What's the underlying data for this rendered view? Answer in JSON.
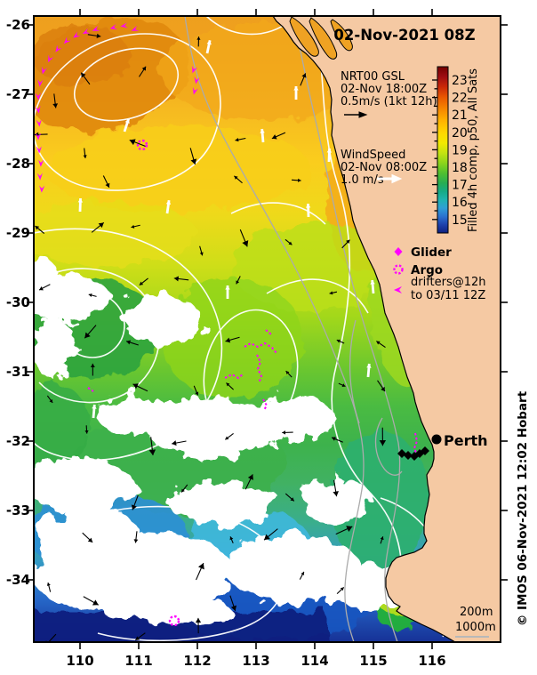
{
  "map": {
    "title": "02-Nov-2021 08Z"
  },
  "gsl": {
    "line1": "NRT00 GSL",
    "line2": "02-Nov 18:00Z",
    "line3": "0.5m/s (1kt 12h)"
  },
  "wind": {
    "line1": "WindSpeed",
    "line2": "02-Nov 08:00Z",
    "line3": "1.0 m/s"
  },
  "colorbar": {
    "label": "Filled 4h comp, p50, All Sats",
    "ticks": [
      "23",
      "22",
      "21",
      "20",
      "19",
      "18",
      "17",
      "16",
      "15"
    ],
    "top_color": "#730000",
    "bottom_color": "#0E2080"
  },
  "markers_legend": {
    "glider_label": "Glider",
    "argo_label": "Argo",
    "drifters_line1": "drifters@12h",
    "drifters_line2": "to 03/11 12Z"
  },
  "city": {
    "name": "Perth"
  },
  "depth": {
    "line1": "200m",
    "line2": "1000m"
  },
  "credit": {
    "text": "© IMOS 06-Nov-2021 12:02 Hobart"
  },
  "axes": {
    "x_ticks": [
      "110",
      "111",
      "112",
      "113",
      "114",
      "115",
      "116"
    ],
    "y_ticks": [
      "-26",
      "-27",
      "-28",
      "-29",
      "-30",
      "-31",
      "-32",
      "-33",
      "-34"
    ]
  },
  "colors": {
    "land": "#F5C9A3",
    "track_magenta": "#FF00FF",
    "contour_white": "#FFFFFF",
    "bathy_gray": "#ABABAB"
  }
}
